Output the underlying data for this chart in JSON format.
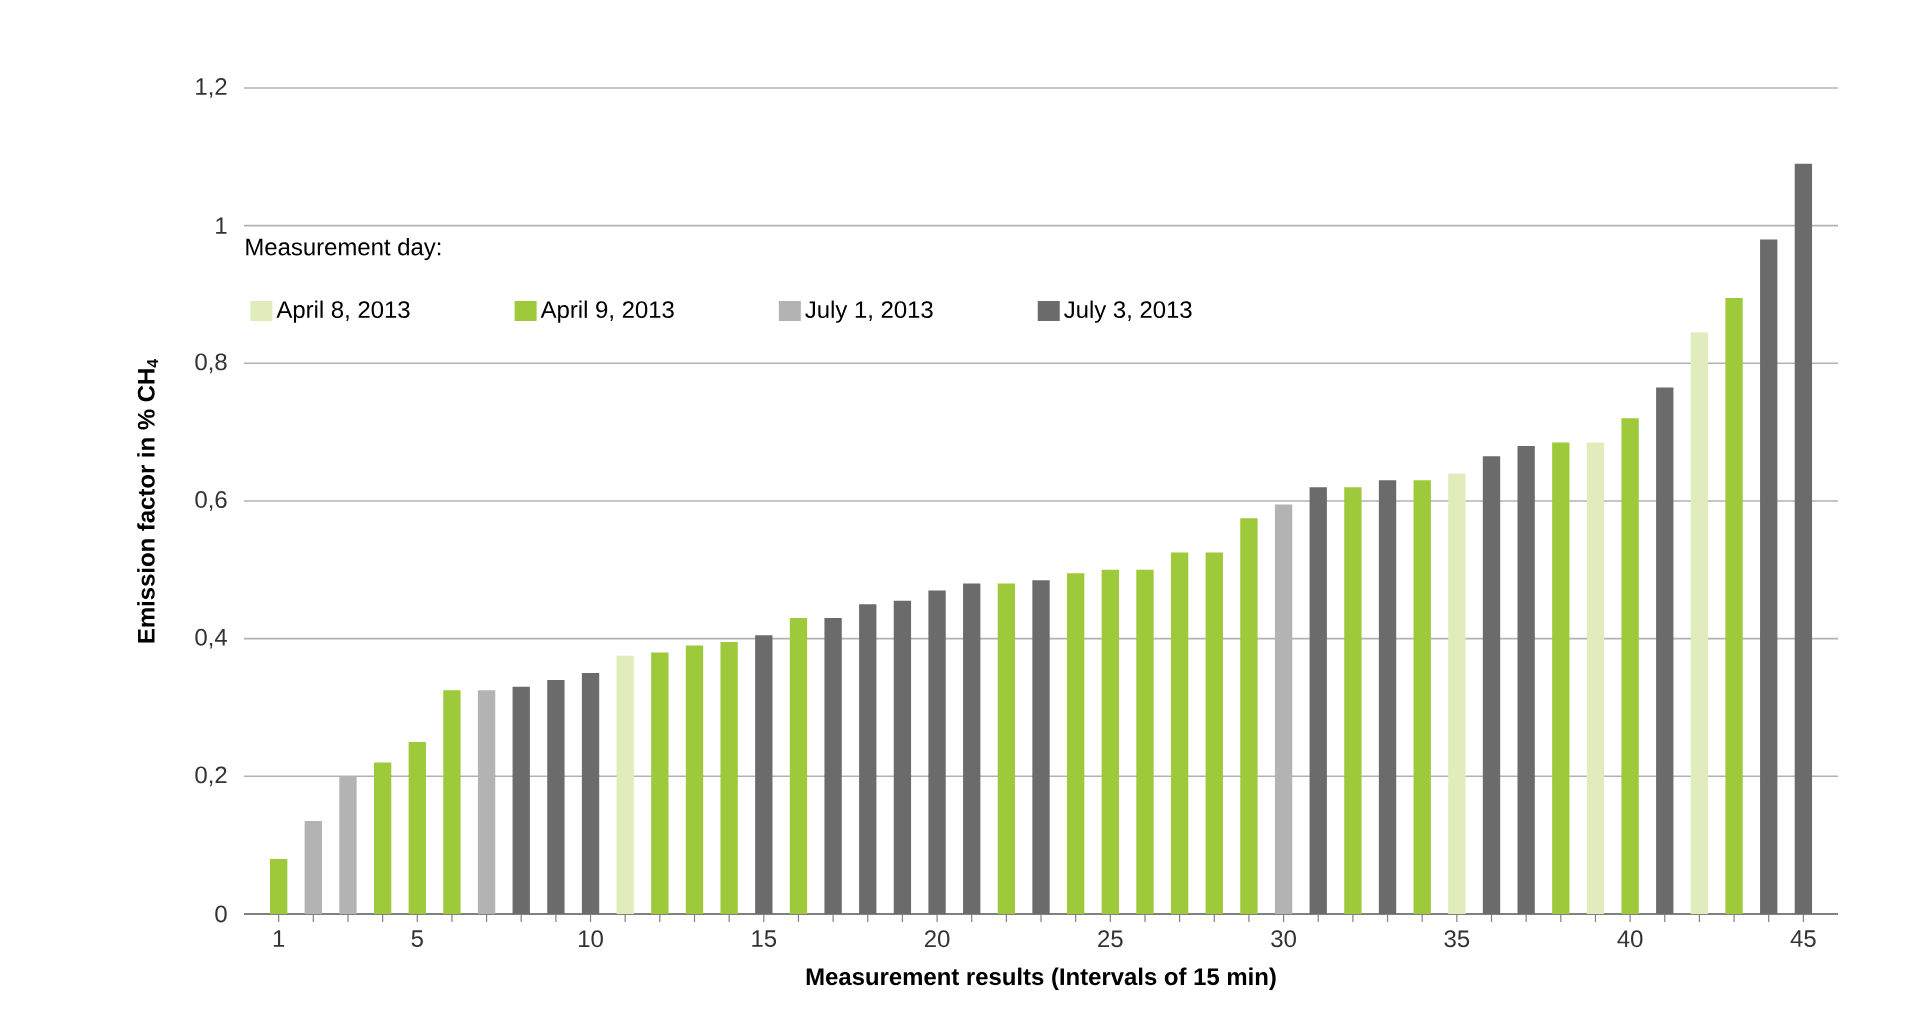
{
  "chart_data": {
    "type": "bar",
    "xlabel": "Measurement results (Intervals of 15 min)",
    "ylabel": "Emission factor in % CH$_{4}$",
    "legend_title": "Measurement day:",
    "legend": "top left",
    "grid": "y",
    "xlim": [
      0,
      46
    ],
    "ylim": [
      0,
      1.2
    ],
    "xticks": [
      1,
      {
        "value": 2,
        "label": null
      },
      {
        "value": 3,
        "label": null
      },
      {
        "value": 4,
        "label": null
      },
      5,
      {
        "value": 6,
        "label": null
      },
      {
        "value": 7,
        "label": null
      },
      {
        "value": 8,
        "label": null
      },
      {
        "value": 9,
        "label": null
      },
      10,
      {
        "value": 11,
        "label": null
      },
      {
        "value": 12,
        "label": null
      },
      {
        "value": 13,
        "label": null
      },
      {
        "value": 14,
        "label": null
      },
      15,
      {
        "value": 16,
        "label": null
      },
      {
        "value": 17,
        "label": null
      },
      {
        "value": 18,
        "label": null
      },
      {
        "value": 19,
        "label": null
      },
      20,
      {
        "value": 21,
        "label": null
      },
      {
        "value": 22,
        "label": null
      },
      {
        "value": 23,
        "label": null
      },
      {
        "value": 24,
        "label": null
      },
      25,
      {
        "value": 26,
        "label": null
      },
      {
        "value": 27,
        "label": null
      },
      {
        "value": 28,
        "label": null
      },
      {
        "value": 29,
        "label": null
      },
      30,
      {
        "value": 31,
        "label": null
      },
      {
        "value": 32,
        "label": null
      },
      {
        "value": 33,
        "label": null
      },
      {
        "value": 34,
        "label": null
      },
      35,
      {
        "value": 36,
        "label": null
      },
      {
        "value": 37,
        "label": null
      },
      {
        "value": 38,
        "label": null
      },
      {
        "value": 39,
        "label": null
      },
      40,
      {
        "value": 41,
        "label": null
      },
      {
        "value": 42,
        "label": null
      },
      {
        "value": 43,
        "label": null
      },
      {
        "value": 44,
        "label": null
      },
      45
    ],
    "yticks": [
      0,
      {
        "value": 0.2,
        "label": "0,2"
      },
      {
        "value": 0.4,
        "label": "0,4"
      },
      {
        "value": 0.6,
        "label": "0,6"
      },
      {
        "value": 0.8,
        "label": "0,8"
      },
      1,
      {
        "value": 1.2,
        "label": "1,2"
      }
    ],
    "series": [
      {
        "name": "April 8, 2013",
        "color": "#e1ecbc",
        "x": [
          11,
          35,
          39,
          42
        ],
        "values": [
          0.375,
          0.64,
          0.685,
          0.845
        ]
      },
      {
        "name": "April 9, 2013",
        "color": "#9dc93a",
        "x": [
          1,
          4,
          5,
          6,
          12,
          13,
          14,
          16,
          22,
          24,
          25,
          26,
          27,
          28,
          29,
          32,
          34,
          38,
          40,
          43
        ],
        "values": [
          0.08,
          0.22,
          0.25,
          0.325,
          0.38,
          0.39,
          0.395,
          0.43,
          0.48,
          0.495,
          0.5,
          0.5,
          0.525,
          0.525,
          0.575,
          0.62,
          0.63,
          0.685,
          0.72,
          0.895
        ]
      },
      {
        "name": "July 1, 2013",
        "color": "#b3b3b3",
        "x": [
          2,
          3,
          7,
          30
        ],
        "values": [
          0.135,
          0.2,
          0.325,
          0.595
        ]
      },
      {
        "name": "July 3, 2013",
        "color": "#6b6b6b",
        "x": [
          8,
          9,
          10,
          15,
          17,
          18,
          19,
          20,
          21,
          23,
          31,
          33,
          36,
          37,
          41,
          44,
          45
        ],
        "values": [
          0.33,
          0.34,
          0.35,
          0.405,
          0.43,
          0.45,
          0.455,
          0.47,
          0.48,
          0.485,
          0.62,
          0.63,
          0.665,
          0.68,
          0.765,
          0.98,
          1.09
        ]
      }
    ]
  }
}
